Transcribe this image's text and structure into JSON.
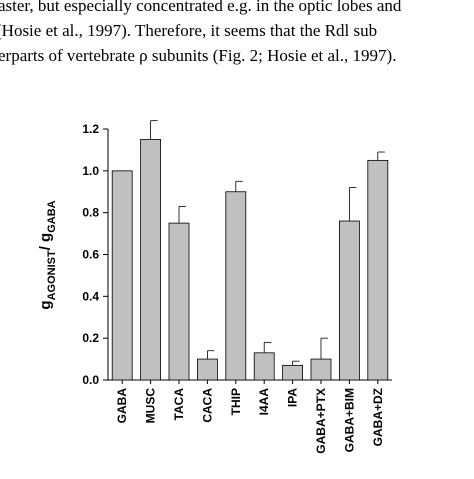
{
  "document": {
    "lines": [
      "aster, but especially concentrated e.g. in the optic lobes and",
      "(Hosie et al., 1997). Therefore, it seems that the Rdl sub",
      "erparts of vertebrate ρ subunits (Fig. 2; Hosie et al., 1997)."
    ]
  },
  "chart_data": {
    "type": "bar",
    "ylabel": [
      "g",
      "AGONIST",
      "/ g",
      "GABA"
    ],
    "categories": [
      "GABA",
      "MUSC",
      "TACA",
      "CACA",
      "THIP",
      "I4AA",
      "IPA",
      "GABA+PTX",
      "GABA+BIM",
      "GABA+DZ"
    ],
    "values": [
      1.0,
      1.15,
      0.75,
      0.1,
      0.9,
      0.13,
      0.07,
      0.1,
      0.76,
      1.05
    ],
    "errors": [
      null,
      0.09,
      0.08,
      0.04,
      0.05,
      0.05,
      0.02,
      0.1,
      0.16,
      0.04
    ],
    "color": "#c0c0c0",
    "ylim": [
      0,
      1.2
    ],
    "yticks": [
      {
        "value": 0,
        "label": "0.0"
      },
      0.2,
      0.4,
      0.6,
      0.8,
      {
        "value": 1,
        "label": "1.0"
      },
      1.2
    ],
    "grid": false
  }
}
